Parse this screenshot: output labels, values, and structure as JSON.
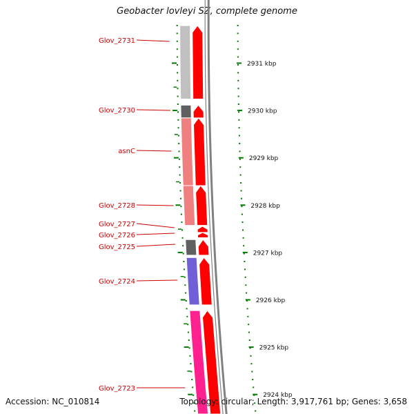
{
  "title": "Geobacter lovleyi SZ, complete genome",
  "footer": {
    "accession": "Accession: NC_010814",
    "summary": "Topology: circular; Length: 3,917,761 bp; Genes: 3,658"
  },
  "colors": {
    "label": "#cc0000",
    "tick": "#007700",
    "arrow": "#ff0000",
    "backbone": "#808080",
    "cog_grey_light": "#c0c0c0",
    "cog_grey_dark": "#606060",
    "cog_salmon": "#f08080",
    "cog_purple": "#7060d8",
    "cog_pink": "#ff2090"
  },
  "scale": {
    "unit": "kbp",
    "marks": [
      {
        "kbp": 2931,
        "label": "2931 kbp"
      },
      {
        "kbp": 2930,
        "label": "2930 kbp"
      },
      {
        "kbp": 2929,
        "label": "2929 kbp"
      },
      {
        "kbp": 2928,
        "label": "2928 kbp"
      },
      {
        "kbp": 2927,
        "label": "2927 kbp"
      },
      {
        "kbp": 2926,
        "label": "2926 kbp"
      },
      {
        "kbp": 2925,
        "label": "2925 kbp"
      },
      {
        "kbp": 2924,
        "label": "2924 kbp"
      }
    ]
  },
  "genes": [
    {
      "name": "Glov_2731",
      "start_kbp": 2931.8,
      "end_kbp": 2930.25,
      "cog": "cog_grey_light"
    },
    {
      "name": "Glov_2730",
      "start_kbp": 2930.12,
      "end_kbp": 2929.85,
      "cog": "cog_grey_dark"
    },
    {
      "name": "asnC",
      "start_kbp": 2929.85,
      "end_kbp": 2928.42,
      "cog": "cog_salmon"
    },
    {
      "name": "Glov_2728",
      "start_kbp": 2928.42,
      "end_kbp": 2927.58,
      "cog": "cog_salmon"
    },
    {
      "name": "Glov_2727",
      "start_kbp": 2927.56,
      "end_kbp": 2927.43,
      "cog": "none"
    },
    {
      "name": "Glov_2726",
      "start_kbp": 2927.43,
      "end_kbp": 2927.32,
      "cog": "none"
    },
    {
      "name": "Glov_2725",
      "start_kbp": 2927.28,
      "end_kbp": 2926.95,
      "cog": "cog_grey_dark"
    },
    {
      "name": "Glov_2724",
      "start_kbp": 2926.9,
      "end_kbp": 2925.9,
      "cog": "cog_purple"
    },
    {
      "name": "Glov_2723",
      "start_kbp": 2925.78,
      "end_kbp": 2923.4,
      "cog": "cog_pink"
    }
  ]
}
